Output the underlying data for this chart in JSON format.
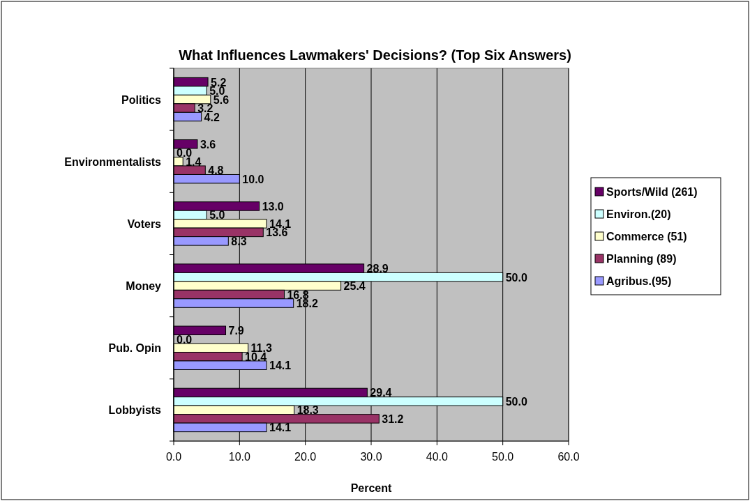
{
  "chart_data": {
    "type": "bar",
    "orientation": "horizontal",
    "title": "What Influences Lawmakers' Decisions? (Top Six Answers)",
    "xlabel": "Percent",
    "categories": [
      "Politics",
      "Environmentalists",
      "Voters",
      "Money",
      "Pub. Opin",
      "Lobbyists"
    ],
    "series": [
      {
        "name": "Sports/Wild (261)",
        "color": "#660066",
        "values": [
          5.2,
          3.6,
          13.0,
          28.9,
          7.9,
          29.4
        ],
        "value_labels": [
          "5.2",
          "3.6",
          "13.0",
          "28.9",
          "7.9",
          "29.4"
        ]
      },
      {
        "name": "Environ.(20)",
        "color": "#ccffff",
        "values": [
          5.0,
          0.0,
          5.0,
          50.0,
          0.0,
          50.0
        ],
        "value_labels": [
          "5.0",
          "0.0",
          "5.0",
          "50.0",
          "0.0",
          "50.0"
        ]
      },
      {
        "name": "Commerce (51)",
        "color": "#ffffcc",
        "values": [
          5.6,
          1.4,
          14.1,
          25.4,
          11.3,
          18.3
        ],
        "value_labels": [
          "5.6",
          "1.4",
          "14.1",
          "25.4",
          "11.3",
          "18.3"
        ]
      },
      {
        "name": "Planning (89)",
        "color": "#993366",
        "values": [
          3.2,
          4.8,
          13.6,
          16.8,
          10.4,
          31.2
        ],
        "value_labels": [
          "3.2",
          "4.8",
          "13.6",
          "16.8",
          "10.4",
          "31.2"
        ]
      },
      {
        "name": "Agribus.(95)",
        "color": "#9999ff",
        "values": [
          4.2,
          10.0,
          8.3,
          18.2,
          14.1,
          14.1
        ],
        "value_labels": [
          "4.2",
          "10.0",
          "8.3",
          "18.2",
          "14.1",
          "14.1"
        ]
      }
    ],
    "xlim": [
      0,
      60
    ],
    "xticks": [
      {
        "value": 0,
        "label": "0.0"
      },
      {
        "value": 10,
        "label": "10.0"
      },
      {
        "value": 20,
        "label": "20.0"
      },
      {
        "value": 30,
        "label": "30.0"
      },
      {
        "value": 40,
        "label": "40.0"
      },
      {
        "value": 50,
        "label": "50.0"
      },
      {
        "value": 60,
        "label": "60.0"
      }
    ],
    "grid": "x",
    "legend": "right"
  }
}
